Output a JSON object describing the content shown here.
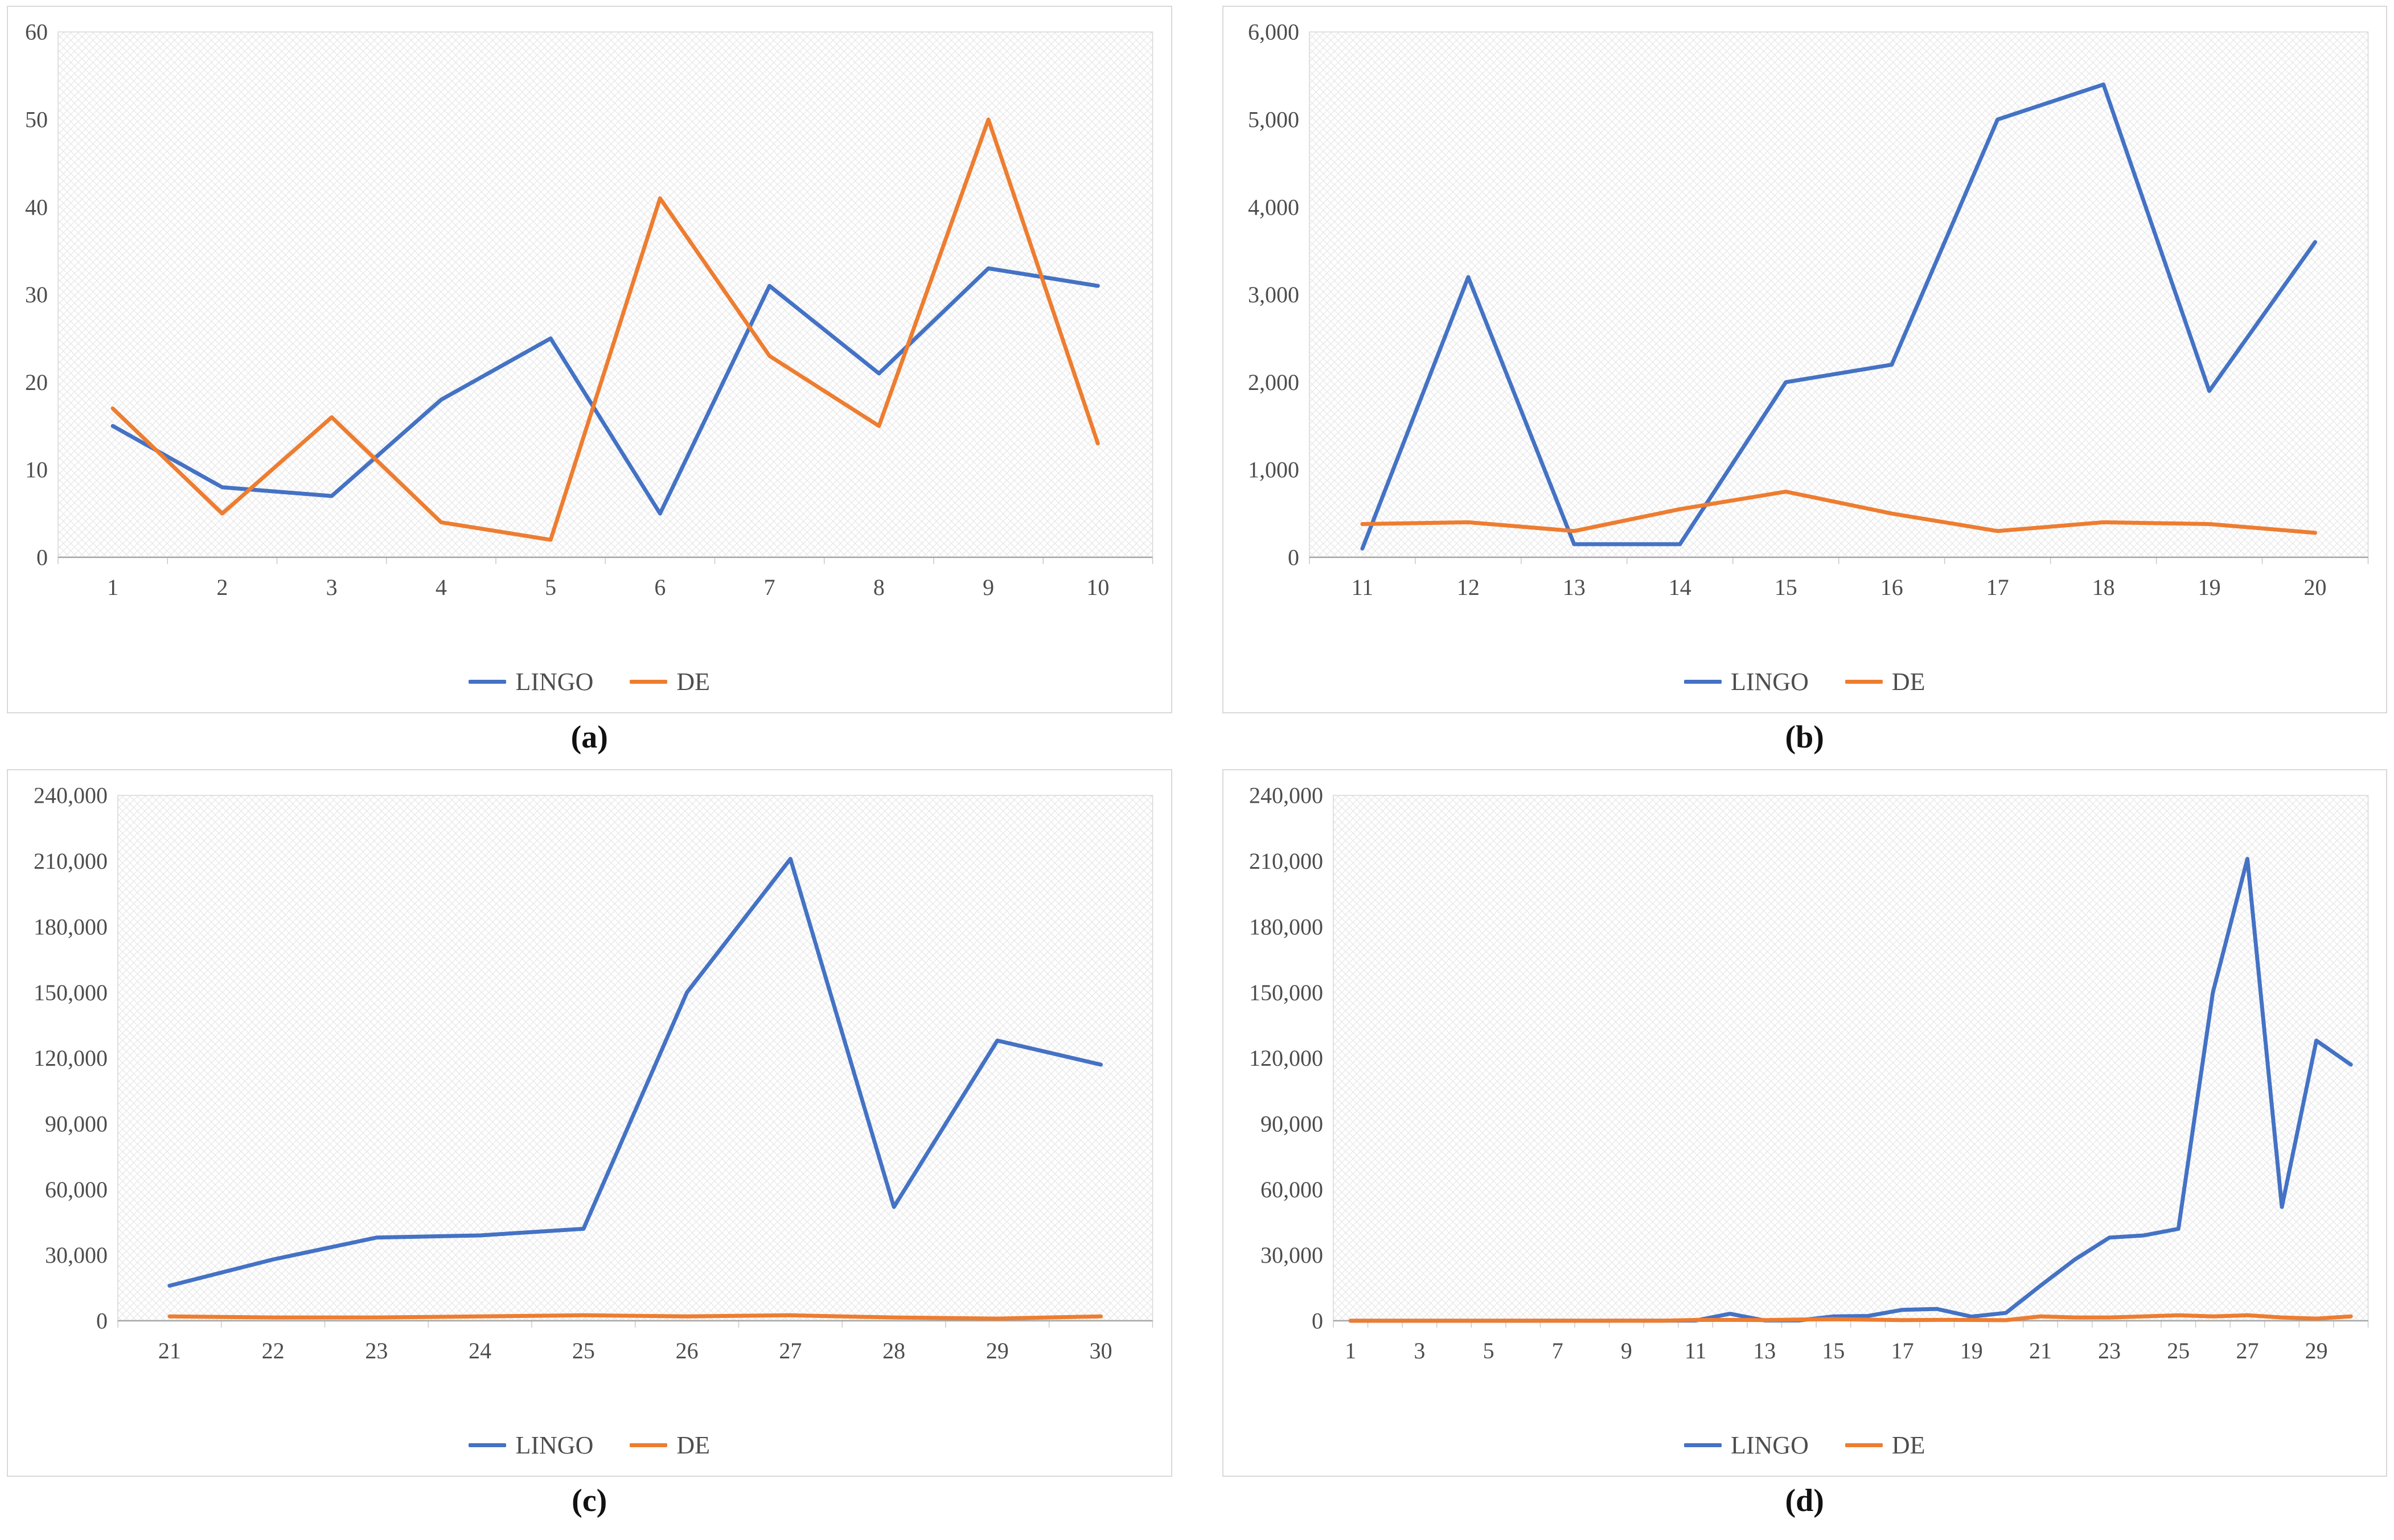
{
  "colors": {
    "lingo_line": "#4472C4",
    "de_line": "#ED7D31",
    "plot_border": "#d9d9d9",
    "axis_line": "#a6a6a6",
    "tick_text": "#4d4d4d",
    "hatch": "#e7e7e7"
  },
  "chart_data": [
    {
      "panel": "(a)",
      "type": "line",
      "categories": [
        1,
        2,
        3,
        4,
        5,
        6,
        7,
        8,
        9,
        10
      ],
      "x_tick_positions": [
        1,
        2,
        3,
        4,
        5,
        6,
        7,
        8,
        9,
        10
      ],
      "x_tick_labels": [
        "1",
        "2",
        "3",
        "4",
        "5",
        "6",
        "7",
        "8",
        "9",
        "10"
      ],
      "y_tick_labels": [
        "0",
        "10",
        "20",
        "30",
        "40",
        "50",
        "60"
      ],
      "ylim": [
        0,
        60
      ],
      "grid": false,
      "legend_position": "bottom",
      "series": [
        {
          "name": "LINGO",
          "color": "#4472C4",
          "values": [
            15,
            8,
            7,
            18,
            25,
            5,
            31,
            21,
            33,
            31
          ]
        },
        {
          "name": "DE",
          "color": "#ED7D31",
          "values": [
            17,
            5,
            16,
            4,
            2,
            41,
            23,
            15,
            50,
            13
          ]
        }
      ]
    },
    {
      "panel": "(b)",
      "type": "line",
      "categories": [
        11,
        12,
        13,
        14,
        15,
        16,
        17,
        18,
        19,
        20
      ],
      "x_tick_positions": [
        11,
        12,
        13,
        14,
        15,
        16,
        17,
        18,
        19,
        20
      ],
      "x_tick_labels": [
        "11",
        "12",
        "13",
        "14",
        "15",
        "16",
        "17",
        "18",
        "19",
        "20"
      ],
      "y_tick_labels": [
        "0",
        "1,000",
        "2,000",
        "3,000",
        "4,000",
        "5,000",
        "6,000"
      ],
      "ylim": [
        0,
        6000
      ],
      "grid": false,
      "legend_position": "bottom",
      "series": [
        {
          "name": "LINGO",
          "color": "#4472C4",
          "values": [
            100,
            3200,
            150,
            150,
            2000,
            2200,
            5000,
            5400,
            1900,
            3600
          ]
        },
        {
          "name": "DE",
          "color": "#ED7D31",
          "values": [
            380,
            400,
            300,
            550,
            750,
            500,
            300,
            400,
            380,
            280
          ]
        }
      ]
    },
    {
      "panel": "(c)",
      "type": "line",
      "categories": [
        21,
        22,
        23,
        24,
        25,
        26,
        27,
        28,
        29,
        30
      ],
      "x_tick_positions": [
        21,
        22,
        23,
        24,
        25,
        26,
        27,
        28,
        29,
        30
      ],
      "x_tick_labels": [
        "21",
        "22",
        "23",
        "24",
        "25",
        "26",
        "27",
        "28",
        "29",
        "30"
      ],
      "y_tick_labels": [
        "0",
        "30,000",
        "60,000",
        "90,000",
        "120,000",
        "150,000",
        "180,000",
        "210,000",
        "240,000"
      ],
      "ylim": [
        0,
        240000
      ],
      "grid": false,
      "legend_position": "bottom",
      "series": [
        {
          "name": "LINGO",
          "color": "#4472C4",
          "values": [
            16000,
            28000,
            38000,
            39000,
            42000,
            150000,
            211000,
            52000,
            128000,
            117000
          ]
        },
        {
          "name": "DE",
          "color": "#ED7D31",
          "values": [
            2000,
            1500,
            1500,
            2000,
            2500,
            2000,
            2500,
            1500,
            1000,
            2000
          ]
        }
      ]
    },
    {
      "panel": "(d)",
      "type": "line",
      "categories": [
        1,
        2,
        3,
        4,
        5,
        6,
        7,
        8,
        9,
        10,
        11,
        12,
        13,
        14,
        15,
        16,
        17,
        18,
        19,
        20,
        21,
        22,
        23,
        24,
        25,
        26,
        27,
        28,
        29,
        30
      ],
      "x_tick_positions": [
        1,
        3,
        5,
        7,
        9,
        11,
        13,
        15,
        17,
        19,
        21,
        23,
        25,
        27,
        29
      ],
      "x_tick_labels": [
        "1",
        "3",
        "5",
        "7",
        "9",
        "11",
        "13",
        "15",
        "17",
        "19",
        "21",
        "23",
        "25",
        "27",
        "29"
      ],
      "y_tick_labels": [
        "0",
        "30,000",
        "60,000",
        "90,000",
        "120,000",
        "150,000",
        "180,000",
        "210,000",
        "240,000"
      ],
      "ylim": [
        0,
        240000
      ],
      "grid": false,
      "legend_position": "bottom",
      "series": [
        {
          "name": "LINGO",
          "color": "#4472C4",
          "values": [
            15,
            8,
            7,
            18,
            25,
            5,
            31,
            21,
            33,
            31,
            100,
            3200,
            150,
            150,
            2000,
            2200,
            5000,
            5400,
            1900,
            3600,
            16000,
            28000,
            38000,
            39000,
            42000,
            150000,
            211000,
            52000,
            128000,
            117000
          ]
        },
        {
          "name": "DE",
          "color": "#ED7D31",
          "values": [
            17,
            5,
            16,
            4,
            2,
            41,
            23,
            15,
            50,
            13,
            380,
            400,
            300,
            550,
            750,
            500,
            300,
            400,
            380,
            280,
            2000,
            1500,
            1500,
            2000,
            2500,
            2000,
            2500,
            1500,
            1000,
            2000
          ]
        }
      ]
    }
  ]
}
